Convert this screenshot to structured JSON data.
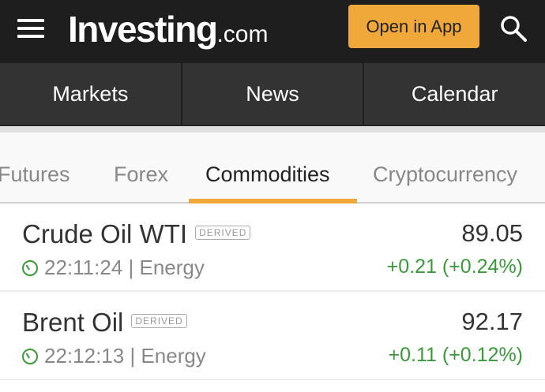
{
  "header": {
    "logo": "Investing",
    "logo_suffix": ".com",
    "open_app": "Open in App"
  },
  "nav": [
    "Markets",
    "News",
    "Calendar"
  ],
  "tabs": [
    "Futures",
    "Forex",
    "Commodities",
    "Cryptocurrency"
  ],
  "active_tab": "Commodities",
  "colors": {
    "accent": "#f0a83a",
    "positive": "#3a9a3a"
  },
  "rows": [
    {
      "name": "Crude Oil WTI",
      "badge": "DERIVED",
      "price": "89.05",
      "time": "22:11:24",
      "category": "| Energy",
      "change": "+0.21 (+0.24%)"
    },
    {
      "name": "Brent Oil",
      "badge": "DERIVED",
      "price": "92.17",
      "time": "22:12:13",
      "category": "| Energy",
      "change": "+0.11 (+0.12%)"
    }
  ]
}
